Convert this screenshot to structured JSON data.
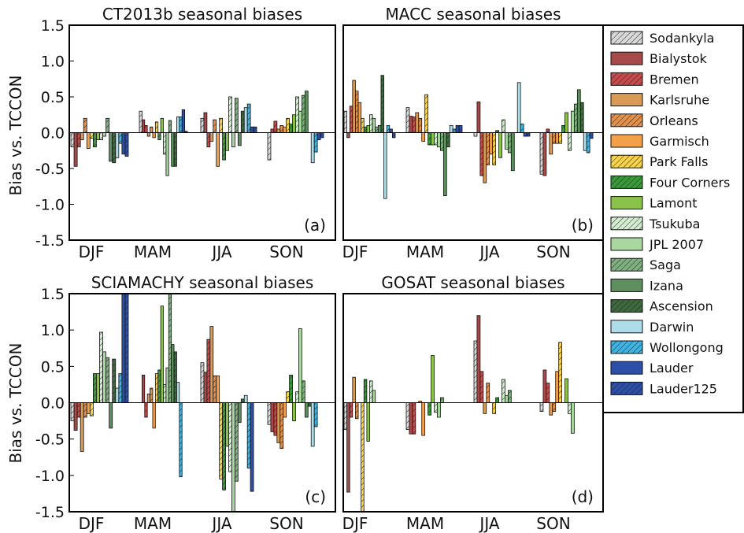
{
  "legend_placement": "right",
  "ylabel": "Bias vs. TCCON",
  "legend": [
    {
      "name": "Sodankyla",
      "color": "#d9d9d9",
      "hatch": true
    },
    {
      "name": "Bialystok",
      "color": "#a94a4a",
      "hatch": false
    },
    {
      "name": "Bremen",
      "color": "#c84a4a",
      "hatch": true
    },
    {
      "name": "Karlsruhe",
      "color": "#d89a55",
      "hatch": false
    },
    {
      "name": "Orleans",
      "color": "#e3914a",
      "hatch": true
    },
    {
      "name": "Garmisch",
      "color": "#f4a04a",
      "hatch": false
    },
    {
      "name": "Park Falls",
      "color": "#f7d24a",
      "hatch": true
    },
    {
      "name": "Four Corners",
      "color": "#3a9a3a",
      "hatch": true
    },
    {
      "name": "Lamont",
      "color": "#8bc34a",
      "hatch": false
    },
    {
      "name": "Tsukuba",
      "color": "#d3ecd0",
      "hatch": true
    },
    {
      "name": "JPL 2007",
      "color": "#a8d8a0",
      "hatch": false
    },
    {
      "name": "Saga",
      "color": "#7fb07f",
      "hatch": true
    },
    {
      "name": "Izana",
      "color": "#5e8f5e",
      "hatch": false
    },
    {
      "name": "Ascension",
      "color": "#3d6a3d",
      "hatch": true
    },
    {
      "name": "Darwin",
      "color": "#acdde8",
      "hatch": false
    },
    {
      "name": "Wollongong",
      "color": "#3fb3e3",
      "hatch": true
    },
    {
      "name": "Lauder",
      "color": "#2e4fa8",
      "hatch": false
    },
    {
      "name": "Lauder125",
      "color": "#2e4fa8",
      "hatch": true
    }
  ],
  "chart_data": [
    {
      "type": "bar",
      "title": "CT2013b seasonal biases",
      "panel_label": "(a)",
      "categories": [
        "DJF",
        "MAM",
        "JJA",
        "SON"
      ],
      "yticks": [
        "1.5",
        "1.0",
        "0.5",
        "0.0",
        "-0.5",
        "-1.0",
        "-1.5"
      ],
      "ylim": [
        -1.5,
        1.5
      ],
      "grid": false,
      "values": [
        [
          -0.2,
          -0.47,
          -0.2,
          -0.1,
          0.2,
          -0.22,
          -0.08,
          -0.2,
          -0.1,
          -0.1,
          -0.05,
          0.2,
          -0.4,
          -0.42,
          -0.35,
          -0.15,
          -0.3,
          -0.33
        ],
        [
          0.3,
          0.18,
          0.1,
          -0.05,
          0.08,
          -0.07,
          0.15,
          -0.1,
          0.2,
          -0.3,
          -0.6,
          0.17,
          -0.47,
          -0.47,
          0.22,
          0.22,
          0.32,
          0.02
        ],
        [
          0.2,
          0.28,
          -0.2,
          -0.12,
          0.18,
          -0.47,
          0.2,
          -0.38,
          -0.25,
          0.5,
          -0.2,
          0.48,
          -0.18,
          0.3,
          0.35,
          0.4,
          0.08,
          0.08
        ],
        [
          -0.38,
          0.05,
          0.16,
          0.05,
          0.1,
          0.08,
          0.2,
          0.12,
          0.25,
          0.5,
          0.3,
          0.52,
          0.58,
          0.0,
          -0.42,
          -0.27,
          -0.1,
          -0.07
        ]
      ]
    },
    {
      "type": "bar",
      "title": "MACC seasonal biases",
      "panel_label": "(b)",
      "categories": [
        "DJF",
        "MAM",
        "JJA",
        "SON"
      ],
      "yticks": [],
      "ylim": [
        -1.5,
        1.5
      ],
      "grid": false,
      "values": [
        [
          0.3,
          -0.07,
          0.37,
          0.73,
          0.58,
          0.42,
          0.2,
          0.08,
          0.1,
          0.25,
          0.2,
          0.08,
          0.1,
          0.8,
          -0.92,
          0.1,
          0.05,
          -0.07
        ],
        [
          0.35,
          0.23,
          0.22,
          0.28,
          0.2,
          -0.12,
          0.53,
          -0.17,
          -0.17,
          -0.17,
          -0.2,
          -0.25,
          -0.88,
          -0.2,
          0.1,
          0.05,
          0.1,
          0.1
        ],
        [
          -0.05,
          0.43,
          -0.6,
          -0.7,
          -0.45,
          -0.3,
          -0.45,
          0.03,
          -0.35,
          0.18,
          -0.23,
          -0.28,
          -0.53,
          0.0,
          0.7,
          0.12,
          -0.05,
          -0.05
        ],
        [
          -0.58,
          -0.6,
          0.05,
          -0.3,
          -0.15,
          -0.15,
          -0.15,
          0.1,
          0.28,
          -0.25,
          0.3,
          0.4,
          0.6,
          0.42,
          -0.25,
          -0.28,
          -0.08,
          0.0
        ]
      ]
    },
    {
      "type": "bar",
      "title": "SCIAMACHY seasonal biases",
      "panel_label": "(c)",
      "categories": [
        "DJF",
        "MAM",
        "JJA",
        "SON"
      ],
      "yticks": [
        "1.5",
        "1.0",
        "0.5",
        "0.0",
        "-0.5",
        "-1.0",
        "-1.5"
      ],
      "ylim": [
        -1.5,
        1.5
      ],
      "grid": false,
      "values": [
        [
          -0.25,
          -0.38,
          -0.2,
          -0.67,
          -0.2,
          -0.15,
          -0.18,
          0.4,
          0.4,
          0.97,
          0.7,
          0.62,
          -0.35,
          0.6,
          0.2,
          0.4,
          1.5,
          1.5
        ],
        [
          0.0,
          0.38,
          -0.2,
          0.12,
          0.2,
          -0.35,
          0.4,
          0.45,
          1.33,
          0.25,
          0.48,
          1.5,
          0.8,
          0.7,
          0.28,
          -1.02,
          0.0,
          0.0
        ],
        [
          0.55,
          0.42,
          0.87,
          1.05,
          0.37,
          0.37,
          -1.05,
          -1.2,
          -0.6,
          -0.95,
          -1.5,
          -1.08,
          -0.27,
          0.05,
          0.1,
          -0.9,
          -1.22,
          0.0
        ],
        [
          -0.3,
          -0.4,
          -0.45,
          -0.55,
          -0.63,
          -0.2,
          0.15,
          0.38,
          -0.25,
          0.15,
          1.02,
          0.3,
          -0.2,
          -0.05,
          -0.6,
          -0.33,
          0.0,
          0.0
        ]
      ]
    },
    {
      "type": "bar",
      "title": "GOSAT seasonal biases",
      "panel_label": "(d)",
      "categories": [
        "DJF",
        "MAM",
        "JJA",
        "SON"
      ],
      "yticks": [],
      "ylim": [
        -1.5,
        1.5
      ],
      "grid": false,
      "values": [
        [
          -0.37,
          -1.23,
          -0.2,
          0.35,
          -0.22,
          0.0,
          -1.5,
          0.32,
          -0.53,
          0.3,
          0.17,
          0.0,
          0.0,
          0.0,
          0.0,
          0.0,
          0.0,
          0.0
        ],
        [
          -0.37,
          -0.43,
          -0.43,
          0.0,
          0.02,
          -0.45,
          0.0,
          -0.17,
          0.65,
          -0.13,
          -0.2,
          0.07,
          0.0,
          0.0,
          0.0,
          0.0,
          0.0,
          0.0
        ],
        [
          0.85,
          1.2,
          0.43,
          -0.15,
          0.27,
          0.0,
          -0.15,
          0.07,
          0.0,
          0.32,
          0.1,
          0.17,
          0.0,
          0.0,
          0.0,
          0.0,
          0.0,
          0.0
        ],
        [
          -0.12,
          0.45,
          0.27,
          -0.17,
          -0.12,
          0.43,
          0.83,
          0.0,
          0.33,
          -0.15,
          -0.42,
          0.0,
          0.0,
          0.0,
          0.0,
          0.0,
          0.0,
          0.0
        ]
      ]
    }
  ]
}
